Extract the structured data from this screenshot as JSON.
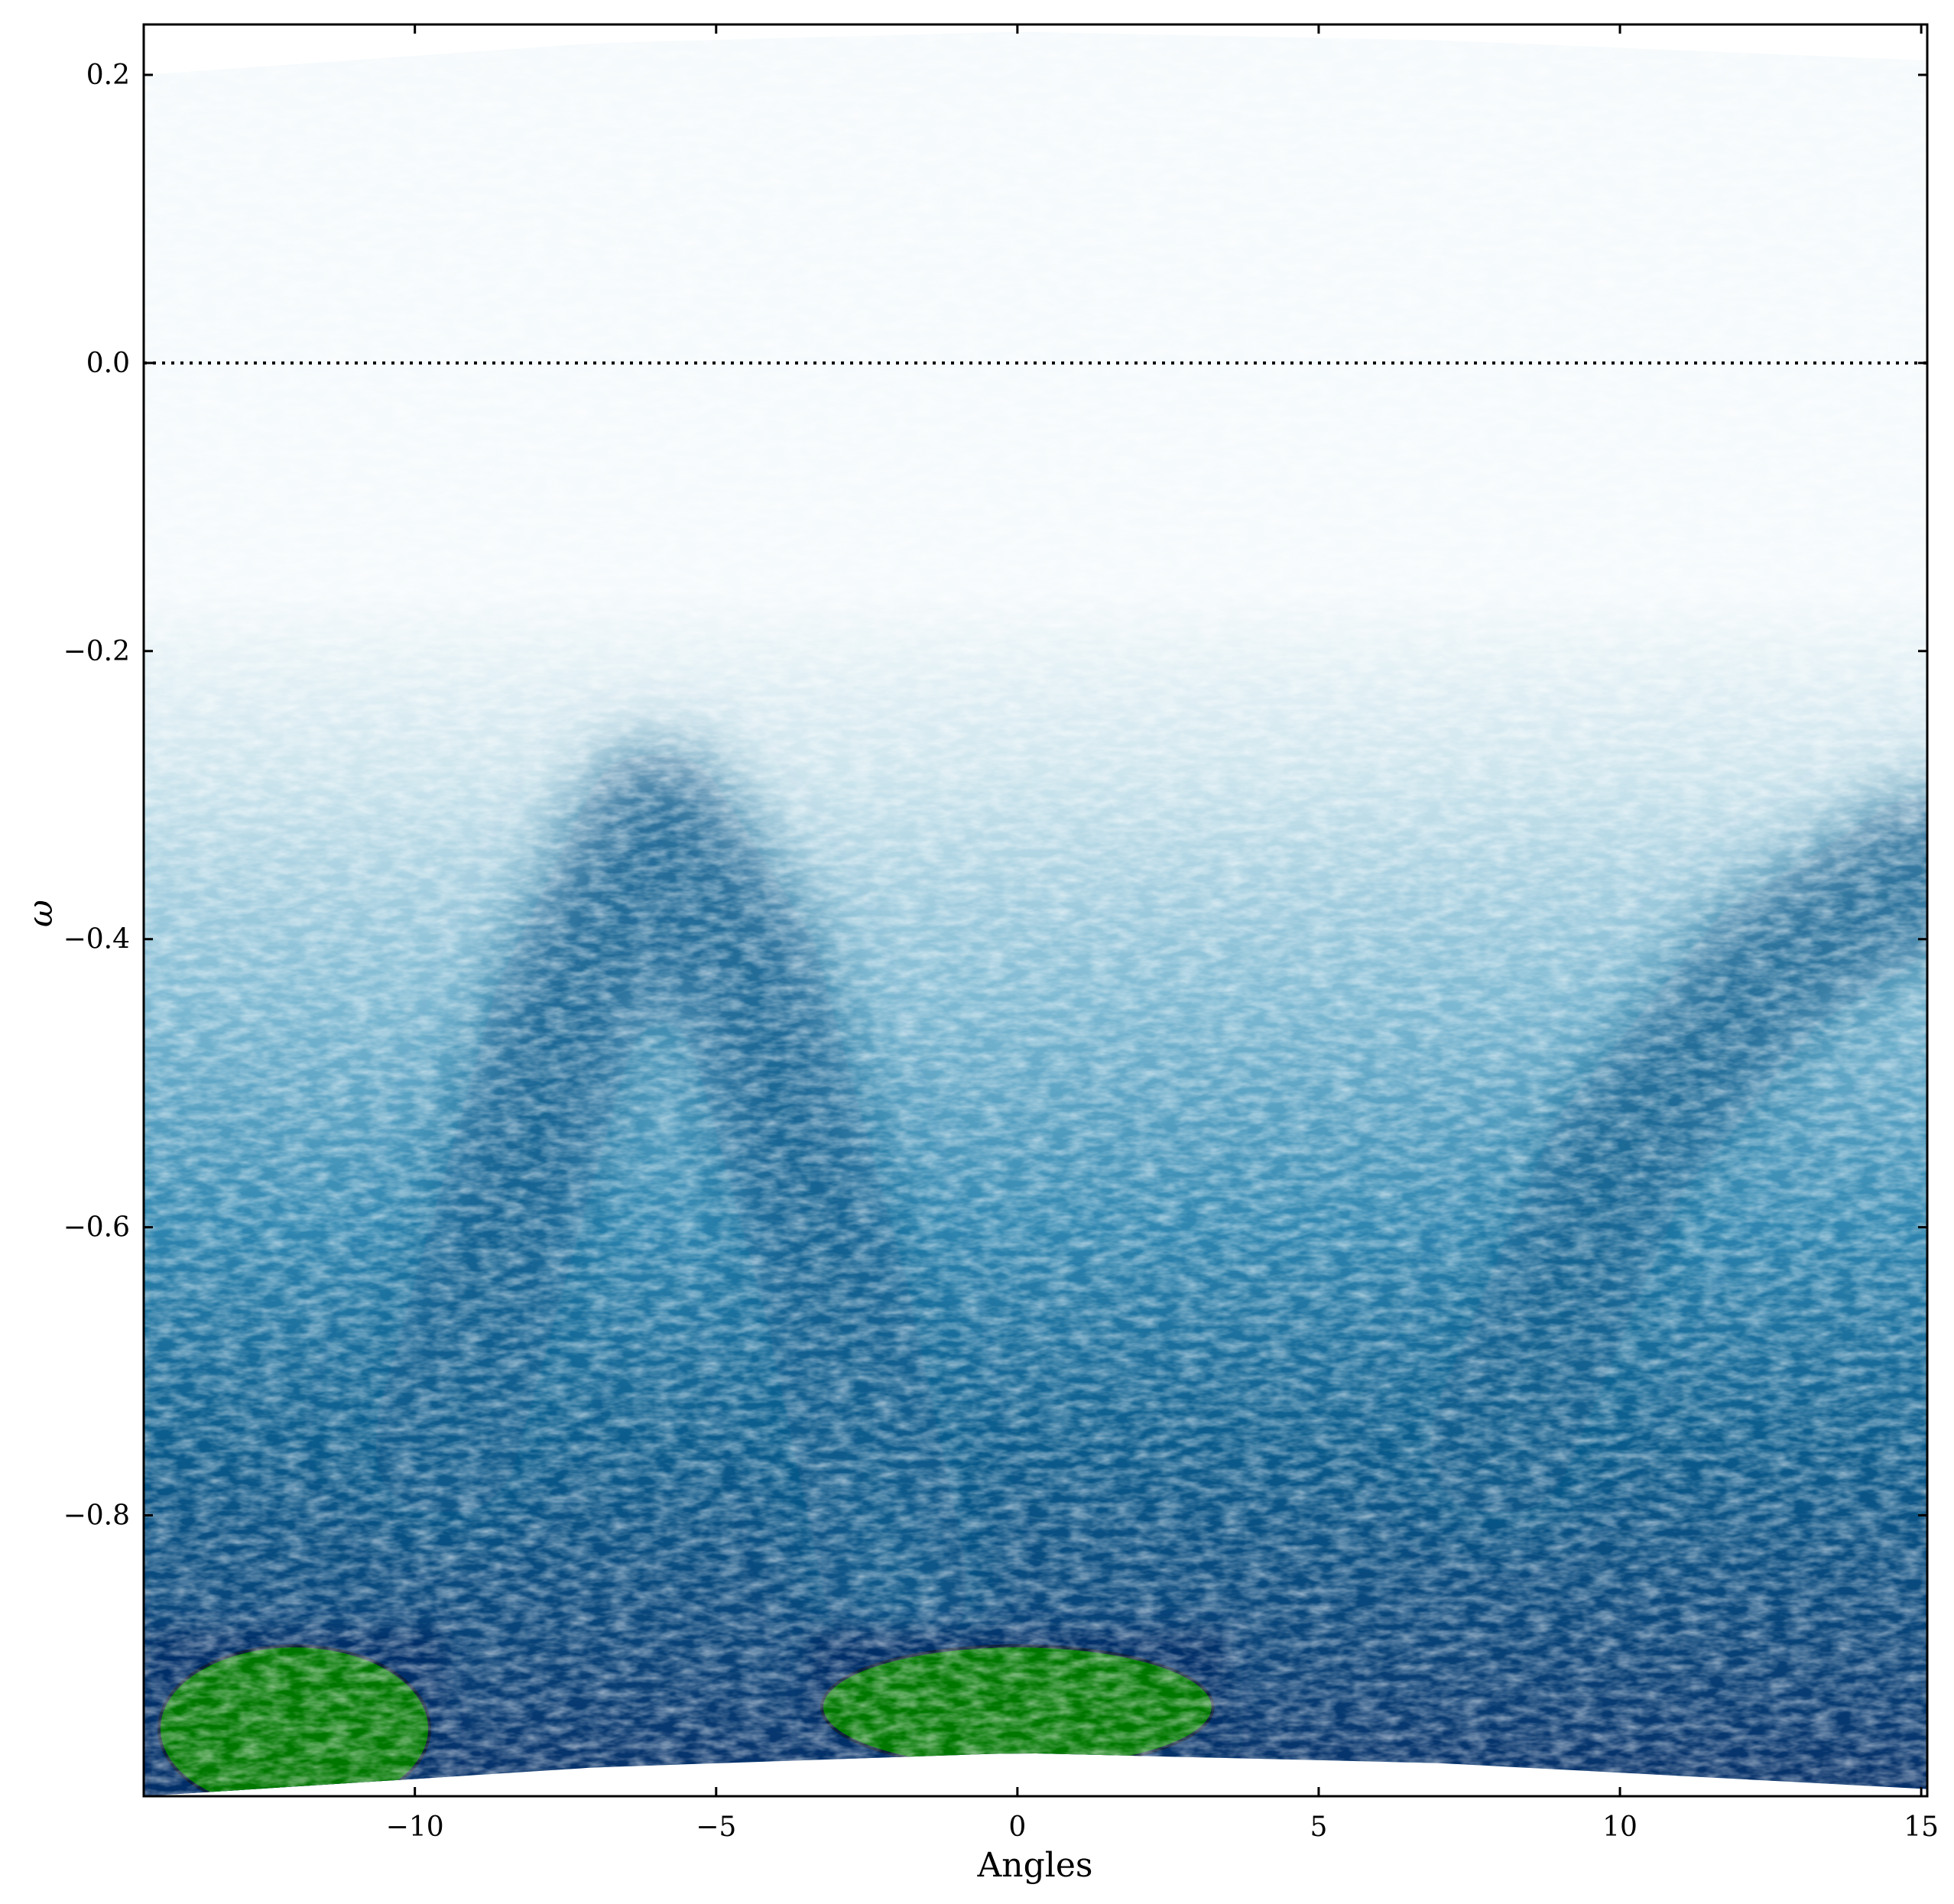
{
  "chart_data": {
    "type": "heatmap",
    "title": "",
    "xlabel": "Angles",
    "ylabel": "ω",
    "xlim": [
      -14.5,
      15.1
    ],
    "ylim": [
      -0.995,
      0.235
    ],
    "xticks": [
      -10,
      -5,
      0,
      5,
      10,
      15
    ],
    "xtick_labels": [
      "−10",
      "−5",
      "0",
      "5",
      "10",
      "15"
    ],
    "yticks": [
      0.2,
      0.0,
      -0.2,
      -0.4,
      -0.6,
      -0.8
    ],
    "ytick_labels": [
      "0.2",
      "0.0",
      "−0.2",
      "−0.4",
      "−0.6",
      "−0.8"
    ],
    "reference_line": {
      "y": 0.0,
      "style": "dotted",
      "color": "#000000"
    },
    "grid": false,
    "legend": "none",
    "colormap": [
      "#f5fafc",
      "#cfe6ee",
      "#7fbad3",
      "#2f86b0",
      "#0b5c8c",
      "#062f68"
    ],
    "saturation_color": "#007800",
    "saturation_contour_color": "#0b1f3a",
    "upper_boundary": {
      "x": [
        -14.5,
        -7,
        0,
        7,
        15.1
      ],
      "y": [
        0.2,
        0.222,
        0.23,
        0.224,
        0.21
      ]
    },
    "lower_boundary": {
      "x": [
        -14.5,
        -7,
        0,
        7,
        15.1
      ],
      "y": [
        -0.995,
        -0.975,
        -0.965,
        -0.972,
        -0.99
      ]
    },
    "features": [
      {
        "name": "dispersing-band-1",
        "x": [
          -9.5,
          -7.5,
          -6.0,
          -4.5,
          -3.0,
          -2.0
        ],
        "y": [
          -0.75,
          -0.45,
          -0.32,
          -0.42,
          -0.65,
          -0.85
        ],
        "intensity": 0.85
      },
      {
        "name": "dispersing-band-2",
        "x": [
          8.0,
          10.0,
          12.5,
          14.0,
          15.1
        ],
        "y": [
          -0.75,
          -0.55,
          -0.42,
          -0.38,
          -0.35
        ],
        "intensity": 0.8
      },
      {
        "name": "flat-band",
        "x": [
          -14.5,
          15.1
        ],
        "y": [
          -0.52,
          -0.52
        ],
        "intensity": 0.5
      },
      {
        "name": "saturated-region-1",
        "x": [
          -14.5,
          -9.5
        ],
        "y": [
          -0.995,
          -0.88
        ],
        "intensity": 1.0
      },
      {
        "name": "saturated-region-2",
        "x": [
          -3.5,
          3.5
        ],
        "y": [
          -0.965,
          -0.88
        ],
        "intensity": 1.0
      }
    ]
  }
}
